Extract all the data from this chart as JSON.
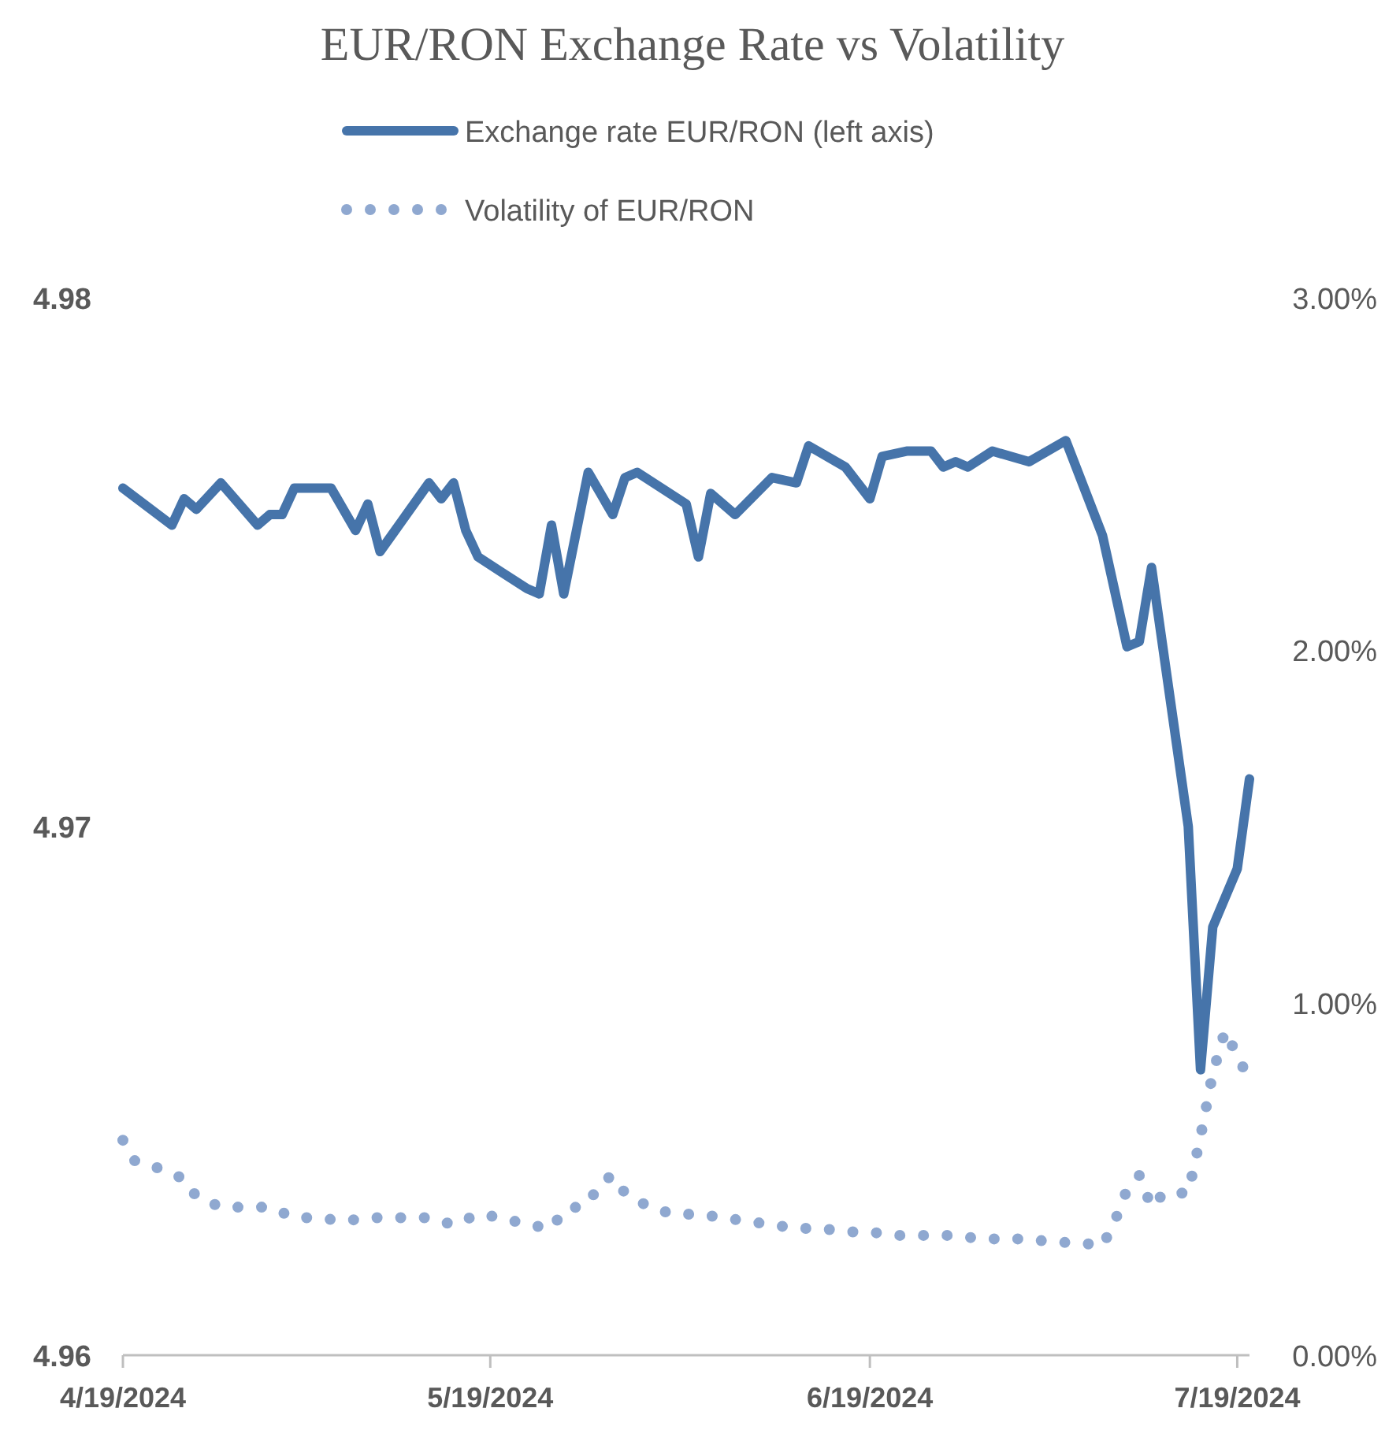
{
  "chart_data": {
    "type": "line",
    "title": "EUR/RON Exchange Rate vs Volatility",
    "legend": "top",
    "grid": false,
    "xlim": [
      "2024-04-19",
      "2024-07-20"
    ],
    "xticks": [
      {
        "value": "2024-04-19",
        "label": "4/19/2024"
      },
      {
        "value": "2024-05-19",
        "label": "5/19/2024"
      },
      {
        "value": "2024-06-19",
        "label": "6/19/2024"
      },
      {
        "value": "2024-07-19",
        "label": "7/19/2024"
      }
    ],
    "ylim": [
      4.96,
      4.98
    ],
    "yticks": [
      4.96,
      4.97,
      4.98
    ],
    "y2lim": [
      0,
      3
    ],
    "y2ticks": [
      {
        "value": 0,
        "label": "0.00%"
      },
      {
        "value": 1,
        "label": "1.00%"
      },
      {
        "value": 2,
        "label": "2.00%"
      },
      {
        "value": 3,
        "label": "3.00%"
      }
    ],
    "series": [
      {
        "name": "Exchange rate EUR/RON (left axis)",
        "color": "#4674aa",
        "line_style": "solid",
        "marker": "none",
        "x": [
          "2024-04-19",
          "2024-04-23",
          "2024-04-24",
          "2024-04-25",
          "2024-04-27",
          "2024-04-30",
          "2024-05-01",
          "2024-05-02",
          "2024-05-03",
          "2024-05-06",
          "2024-05-08",
          "2024-05-09",
          "2024-05-10",
          "2024-05-14",
          "2024-05-15",
          "2024-05-16",
          "2024-05-17",
          "2024-05-18",
          "2024-05-20",
          "2024-05-22",
          "2024-05-23",
          "2024-05-24",
          "2024-05-25",
          "2024-05-27",
          "2024-05-29",
          "2024-05-30",
          "2024-05-31",
          "2024-06-04",
          "2024-06-05",
          "2024-06-06",
          "2024-06-08",
          "2024-06-11",
          "2024-06-13",
          "2024-06-14",
          "2024-06-17",
          "2024-06-19",
          "2024-06-20",
          "2024-06-22",
          "2024-06-24",
          "2024-06-25",
          "2024-06-26",
          "2024-06-27",
          "2024-06-29",
          "2024-07-02",
          "2024-07-05",
          "2024-07-08",
          "2024-07-10",
          "2024-07-11",
          "2024-07-12",
          "2024-07-15",
          "2024-07-16",
          "2024-07-17",
          "2024-07-19",
          "2024-07-20"
        ],
        "values": [
          4.9764,
          4.9757,
          4.9762,
          4.976,
          4.9765,
          4.9757,
          4.9759,
          4.9759,
          4.9764,
          4.9764,
          4.9756,
          4.9761,
          4.9752,
          4.9765,
          4.9762,
          4.9765,
          4.9756,
          4.9751,
          4.9748,
          4.9745,
          4.9744,
          4.9757,
          4.9744,
          4.9767,
          4.9759,
          4.9766,
          4.9767,
          4.9761,
          4.9751,
          4.9763,
          4.9759,
          4.9766,
          4.9765,
          4.9772,
          4.9768,
          4.9762,
          4.977,
          4.9771,
          4.9771,
          4.9768,
          4.9769,
          4.9768,
          4.9771,
          4.9769,
          4.9773,
          4.9755,
          4.9734,
          4.9735,
          4.9749,
          4.97,
          4.9654,
          4.9681,
          4.9692,
          4.9709
        ]
      },
      {
        "name": "Volatility of EUR/RON",
        "color": "#8fa8d0",
        "axis": "y2",
        "line_style": "dotted",
        "marker": "none",
        "x": [
          "2024-04-19",
          "2024-04-20",
          "2024-04-22",
          "2024-04-24",
          "2024-04-25",
          "2024-04-27",
          "2024-04-29",
          "2024-05-01",
          "2024-05-03",
          "2024-05-05",
          "2024-05-07",
          "2024-05-09",
          "2024-05-10",
          "2024-05-12",
          "2024-05-14",
          "2024-05-16",
          "2024-05-18",
          "2024-05-20",
          "2024-05-22",
          "2024-05-24",
          "2024-05-25",
          "2024-05-27",
          "2024-05-28",
          "2024-05-29",
          "2024-05-30",
          "2024-06-01",
          "2024-06-03",
          "2024-06-05",
          "2024-06-07",
          "2024-06-09",
          "2024-06-11",
          "2024-06-13",
          "2024-06-15",
          "2024-06-17",
          "2024-06-19",
          "2024-06-21",
          "2024-06-22",
          "2024-06-24",
          "2024-06-26",
          "2024-06-28",
          "2024-06-30",
          "2024-07-02",
          "2024-07-04",
          "2024-07-06",
          "2024-07-08",
          "2024-07-09",
          "2024-07-10",
          "2024-07-11",
          "2024-07-12",
          "2024-07-13",
          "2024-07-15",
          "2024-07-16",
          "2024-07-17",
          "2024-07-18",
          "2024-07-19",
          "2024-07-20"
        ],
        "values": [
          0.61,
          0.55,
          0.53,
          0.5,
          0.45,
          0.42,
          0.42,
          0.42,
          0.39,
          0.39,
          0.38,
          0.39,
          0.39,
          0.39,
          0.39,
          0.37,
          0.4,
          0.39,
          0.37,
          0.36,
          0.41,
          0.43,
          0.49,
          0.51,
          0.46,
          0.42,
          0.4,
          0.4,
          0.39,
          0.38,
          0.37,
          0.36,
          0.36,
          0.35,
          0.35,
          0.34,
          0.34,
          0.34,
          0.34,
          0.33,
          0.33,
          0.33,
          0.32,
          0.32,
          0.31,
          0.38,
          0.47,
          0.51,
          0.42,
          0.46,
          0.46,
          0.62,
          0.8,
          0.92,
          0.85,
          0.78
        ]
      }
    ]
  }
}
